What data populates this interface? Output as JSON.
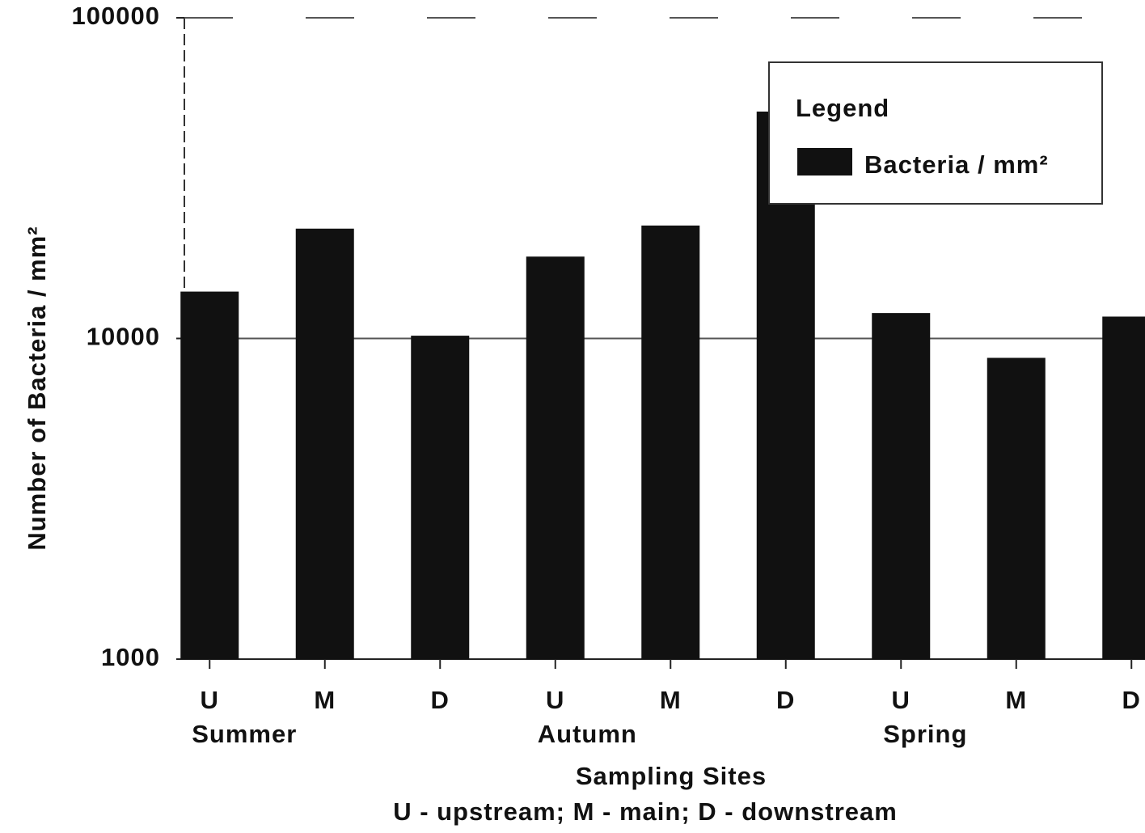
{
  "chart_data": {
    "type": "bar",
    "categories": [
      "U",
      "M",
      "D",
      "U",
      "M",
      "D",
      "U",
      "M",
      "D"
    ],
    "group_labels": [
      "Summer",
      "Autumn",
      "Spring"
    ],
    "series": [
      {
        "name": "Bacteria / mm²",
        "color": "#111111",
        "values": [
          14000,
          22000,
          10200,
          18000,
          22500,
          51000,
          12000,
          8700,
          11700
        ]
      }
    ],
    "ylabel": "Number of Bacteria / mm²",
    "xlabel": "Sampling Sites",
    "note": "U - upstream; M - main;  D - downstream",
    "legend_title": "Legend",
    "legend_position": "upper right",
    "ylim": [
      1000,
      100000
    ],
    "yticks": [
      1000,
      10000,
      100000
    ],
    "log_scale": true,
    "grid": true
  }
}
